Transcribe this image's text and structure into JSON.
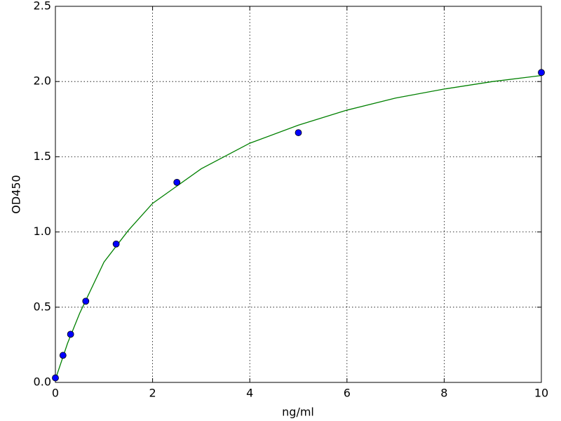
{
  "chart_data": {
    "type": "scatter",
    "xlabel": "ng/ml",
    "ylabel": "OD450",
    "xlim": [
      0,
      10
    ],
    "ylim": [
      0,
      2.5
    ],
    "xticks": [
      0,
      2,
      4,
      6,
      8,
      10
    ],
    "yticks": [
      {
        "value": 0,
        "label": "0.0"
      },
      {
        "value": 0.5,
        "label": "0.5"
      },
      {
        "value": 1,
        "label": "1.0"
      },
      {
        "value": 1.5,
        "label": "1.5"
      },
      {
        "value": 2,
        "label": "2.0"
      },
      {
        "value": 2.5,
        "label": "2.5"
      }
    ],
    "grid": true,
    "series": [
      {
        "type": "scatter",
        "color": "#0000ff",
        "x": [
          0,
          0.156,
          0.3125,
          0.625,
          1.25,
          2.5,
          5,
          10
        ],
        "values": [
          0.03,
          0.18,
          0.32,
          0.54,
          0.92,
          1.33,
          1.66,
          2.06
        ]
      },
      {
        "type": "line",
        "color": "#008000",
        "x": [
          0,
          0.25,
          0.5,
          1,
          1.5,
          2,
          3,
          4,
          5,
          6,
          7,
          8,
          9,
          10
        ],
        "values": [
          0.02,
          0.26,
          0.46,
          0.8,
          1.01,
          1.19,
          1.42,
          1.59,
          1.71,
          1.81,
          1.89,
          1.95,
          2.0,
          2.04
        ]
      }
    ]
  }
}
